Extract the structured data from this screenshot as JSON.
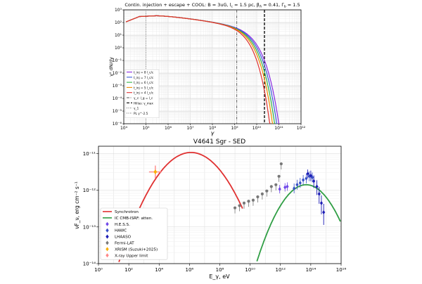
{
  "chart_data": [
    {
      "type": "line",
      "title": "Contin. injection + escape + COOL: B = 3uG, l_c = 1.5 pc, β_A = 0.41, Γ_b = 1.5",
      "title_text": "Contin. injection + escape + COOL: B = 3uG, l",
      "title_sub_c": "c",
      "title_mid": " = 1.5 pc, β",
      "title_sub_A": "A",
      "title_mid2": " = 0.41, Γ",
      "title_sub_b": "b",
      "title_end": " = 1.5",
      "xlabel": "γ",
      "ylabel": "γ² dN/dγ",
      "x_scale": "log",
      "y_scale": "log",
      "xlim_exp": [
        4,
        12
      ],
      "ylim_exp": [
        -6,
        3
      ],
      "x_ticks": [
        "10⁴",
        "10⁵",
        "10⁶",
        "10⁷",
        "10⁸",
        "10⁹",
        "10¹⁰",
        "10¹¹",
        "10¹²"
      ],
      "y_ticks": [
        "10³",
        "10²",
        "10¹",
        "10⁰",
        "10⁻¹",
        "10⁻²",
        "10⁻³",
        "10⁻⁴",
        "10⁻⁵",
        "10⁻⁶"
      ],
      "vlines": [
        {
          "name": "γ_c: l_g = l_c",
          "log_x": 9.1,
          "style": "dashdot",
          "color": "#555555"
        },
        {
          "name": "Hillas: γ_max",
          "log_x": 10.35,
          "style": "dashed",
          "color": "#000000"
        },
        {
          "name": "γ_1",
          "log_x": 5.0,
          "style": "dotted",
          "color": "#777777"
        }
      ],
      "series": [
        {
          "name": "t_inj = 8 l_c/c",
          "color": "#8a2be2",
          "log_cut": 11.15
        },
        {
          "name": "t_inj = 7 l_c/c",
          "color": "#3b5bdb",
          "log_cut": 11.05
        },
        {
          "name": "t_inj = 6 l_c/c",
          "color": "#2fb344",
          "log_cut": 10.95
        },
        {
          "name": "t_inj = 5 l_c/c",
          "color": "#f08c00",
          "log_cut": 10.85
        },
        {
          "name": "t_inj = 4 l_c/c",
          "color": "#e03131",
          "log_cut": 10.72
        }
      ],
      "legend": [
        {
          "label": "t_inj = 8 l_c/c",
          "color": "#8a2be2",
          "style": "solid"
        },
        {
          "label": "t_inj = 7 l_c/c",
          "color": "#3b5bdb",
          "style": "solid"
        },
        {
          "label": "t_inj = 6 l_c/c",
          "color": "#2fb344",
          "style": "solid"
        },
        {
          "label": "t_inj = 5 l_c/c",
          "color": "#f08c00",
          "style": "solid"
        },
        {
          "label": "t_inj = 4 l_c/c",
          "color": "#e03131",
          "style": "solid"
        },
        {
          "label": "γ_c: l_g = l_c",
          "color": "#555555",
          "style": "dashdot"
        },
        {
          "label": "Hillas: γ_max",
          "color": "#000000",
          "style": "dashed"
        },
        {
          "label": "γ_1",
          "color": "#777777",
          "style": "dotted"
        },
        {
          "label": "PL γ^-2.5",
          "color": "#777777",
          "style": "dotted"
        }
      ]
    },
    {
      "type": "scatter",
      "title": "V4641 Sgr - SED",
      "xlabel": "E_γ, eV",
      "ylabel": "νF_ν, erg cm⁻² s⁻¹",
      "x_scale": "log",
      "y_scale": "log",
      "xlim_exp": [
        0,
        16
      ],
      "ylim_exp": [
        -14,
        -10.8
      ],
      "x_ticks": [
        "10⁰",
        "10²",
        "10⁴",
        "10⁶",
        "10⁸",
        "10¹⁰",
        "10¹²",
        "10¹⁴",
        "10¹⁶"
      ],
      "y_ticks": [
        "10⁻¹¹",
        "10⁻¹²",
        "10⁻¹³",
        "10⁻¹⁴"
      ],
      "synchrotron": {
        "name": "Synchrotron",
        "color": "#e03131",
        "peak_log_E": 6.1,
        "peak_log_F": -10.97
      },
      "ic": {
        "name": "IC CMB-ISRF: atten.",
        "color": "#2f9e44",
        "peak_log_E": 13.7,
        "peak_log_F": -11.85
      },
      "hess": {
        "name": "H.E.S.S.",
        "color": "#7048e8",
        "points": [
          [
            11.95,
            -11.97
          ],
          [
            12.3,
            -11.92
          ],
          [
            12.45,
            -11.9
          ]
        ]
      },
      "hawc": {
        "name": "HAWC",
        "color": "#364fc7",
        "points": [
          [
            12.9,
            -11.95
          ],
          [
            13.1,
            -11.85
          ],
          [
            13.3,
            -11.8
          ],
          [
            13.5,
            -11.72
          ],
          [
            13.7,
            -11.68
          ],
          [
            13.9,
            -11.62
          ],
          [
            14.1,
            -11.65
          ]
        ]
      },
      "lhaaso": {
        "name": "LHAASO",
        "color": "#1c1cb5",
        "points": [
          [
            13.8,
            -11.55
          ],
          [
            14.0,
            -11.6
          ],
          [
            14.2,
            -11.75
          ],
          [
            14.4,
            -11.9
          ],
          [
            14.55,
            -12.1
          ],
          [
            14.7,
            -12.35
          ],
          [
            14.85,
            -12.6
          ]
        ]
      },
      "fermi": {
        "name": "Fermi-LAT",
        "color": "#777777",
        "points": [
          [
            9.0,
            -12.48
          ],
          [
            9.3,
            -12.42
          ],
          [
            9.6,
            -12.35
          ],
          [
            9.9,
            -12.3
          ],
          [
            10.2,
            -12.27
          ],
          [
            10.5,
            -12.18
          ],
          [
            10.8,
            -12.1
          ],
          [
            11.1,
            -12.02
          ],
          [
            11.4,
            -11.9
          ],
          [
            11.7,
            -11.85
          ],
          [
            11.9,
            -11.62
          ],
          [
            12.05,
            -11.28
          ]
        ]
      },
      "xrism": {
        "name": "XRISM (Suzuki+2025)",
        "color": "#fab005",
        "point": [
          3.75,
          -11.5
        ]
      },
      "xray_ul": {
        "name": "X-ray Upper limit",
        "color": "#ff8787",
        "point": [
          3.75,
          -11.52
        ]
      },
      "legend": [
        {
          "label": "Synchrotron",
          "color": "#e03131",
          "kind": "line"
        },
        {
          "label": "IC CMB-ISRF: atten.",
          "color": "#2f9e44",
          "kind": "line"
        },
        {
          "label": "H.E.S.S.",
          "color": "#7048e8",
          "kind": "diamond"
        },
        {
          "label": "HAWC",
          "color": "#364fc7",
          "kind": "diamond"
        },
        {
          "label": "LHAASO",
          "color": "#1c1cb5",
          "kind": "diamond"
        },
        {
          "label": "Fermi-LAT",
          "color": "#777777",
          "kind": "diamond"
        },
        {
          "label": "XRISM (Suzuki+2025)",
          "color": "#fab005",
          "kind": "diamond"
        },
        {
          "label": "X-ray Upper limit",
          "color": "#ff8787",
          "kind": "diamond"
        }
      ]
    }
  ]
}
